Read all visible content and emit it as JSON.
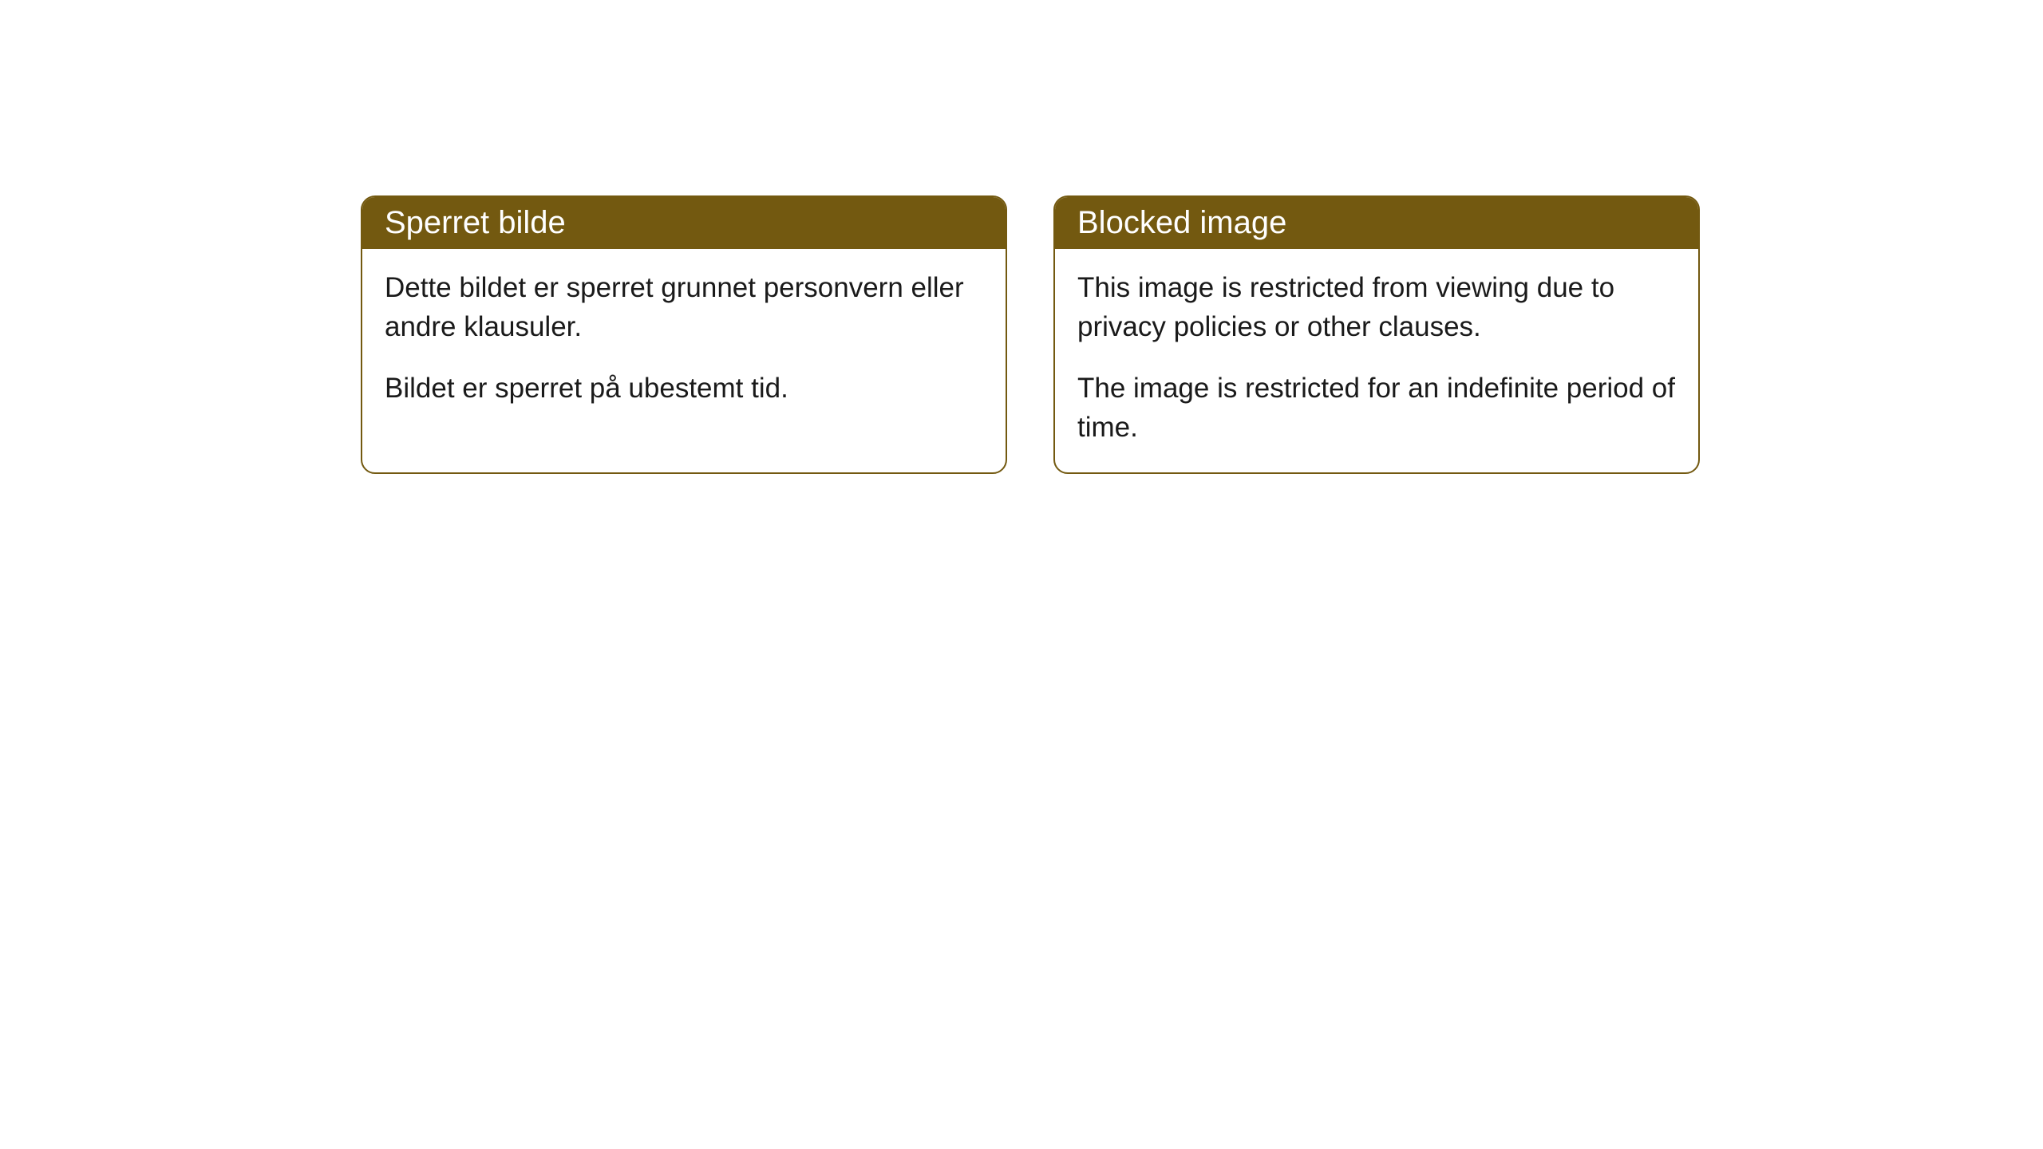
{
  "cards": [
    {
      "title": "Sperret bilde",
      "paragraph1": "Dette bildet er sperret grunnet personvern eller andre klausuler.",
      "paragraph2": "Bildet er sperret på ubestemt tid."
    },
    {
      "title": "Blocked image",
      "paragraph1": "This image is restricted from viewing due to privacy policies or other clauses.",
      "paragraph2": "The image is restricted for an indefinite period of time."
    }
  ],
  "styling": {
    "header_background_color": "#735910",
    "header_text_color": "#ffffff",
    "border_color": "#735910",
    "body_background_color": "#ffffff",
    "body_text_color": "#1a1a1a",
    "border_radius": 18,
    "header_fontsize": 40,
    "body_fontsize": 35
  }
}
